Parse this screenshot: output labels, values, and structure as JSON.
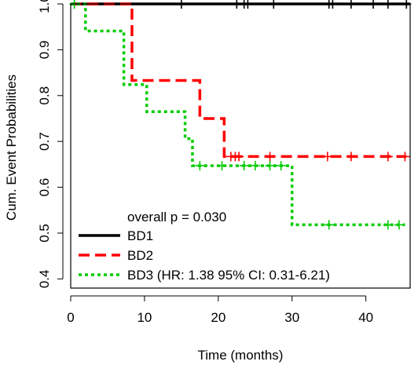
{
  "chart_data": {
    "type": "line",
    "subtype": "kaplan-meier-step",
    "title": "",
    "xlabel": "Time (months)",
    "ylabel": "Cum. Event Probabilities",
    "xlim": [
      0,
      46
    ],
    "ylim": [
      0.38,
      1.0
    ],
    "x_ticks": [
      0,
      10,
      20,
      30,
      40
    ],
    "y_ticks": [
      0.4,
      0.5,
      0.6,
      0.7,
      0.8,
      0.9,
      1.0
    ],
    "x_tick_labels": [
      "0",
      "10",
      "20",
      "30",
      "40"
    ],
    "y_tick_labels": [
      "0.4",
      "0.5",
      "0.6",
      "0.7",
      "0.8",
      "0.9",
      "1.0"
    ],
    "grid": false,
    "legend_title": "overall p = 0.030",
    "legend_position": "bottom-left",
    "series": [
      {
        "name": "BD1",
        "legend_label": "BD1",
        "color": "#000000",
        "line_style": "solid",
        "x": [
          0,
          46
        ],
        "y": [
          1.0,
          1.0
        ],
        "censored_x": [
          0.5,
          15,
          22.5,
          23.5,
          24,
          27.5,
          35,
          35.5,
          38,
          41,
          43,
          45.5
        ],
        "censored_y": [
          1.0,
          1.0,
          1.0,
          1.0,
          1.0,
          1.0,
          1.0,
          1.0,
          1.0,
          1.0,
          1.0,
          1.0
        ]
      },
      {
        "name": "BD2",
        "legend_label": "BD2",
        "color": "#ff0000",
        "line_style": "dashed",
        "x": [
          0,
          8.3,
          17.5,
          20.8,
          45.5
        ],
        "y": [
          1.0,
          0.833,
          0.75,
          0.667,
          0.667
        ],
        "censored_x": [
          21.7,
          22.3,
          22.8,
          27,
          34.8,
          38,
          43,
          45.3
        ],
        "censored_y": [
          0.667,
          0.667,
          0.667,
          0.667,
          0.667,
          0.667,
          0.667,
          0.667
        ]
      },
      {
        "name": "BD3",
        "legend_label": "BD3 (HR: 1.38 95% CI: 0.31-6.21)",
        "color": "#00cc00",
        "line_style": "dotted",
        "x": [
          0,
          2,
          7.2,
          10.3,
          15.5,
          16.5,
          30,
          45.3
        ],
        "y": [
          1.0,
          0.941,
          0.824,
          0.765,
          0.706,
          0.647,
          0.518,
          0.518
        ],
        "censored_x": [
          0.5,
          17.5,
          20.5,
          23.5,
          25,
          27,
          28.5,
          35,
          43,
          44.5
        ],
        "censored_y": [
          1.0,
          0.647,
          0.647,
          0.647,
          0.647,
          0.647,
          0.647,
          0.518,
          0.518,
          0.518
        ]
      }
    ]
  }
}
